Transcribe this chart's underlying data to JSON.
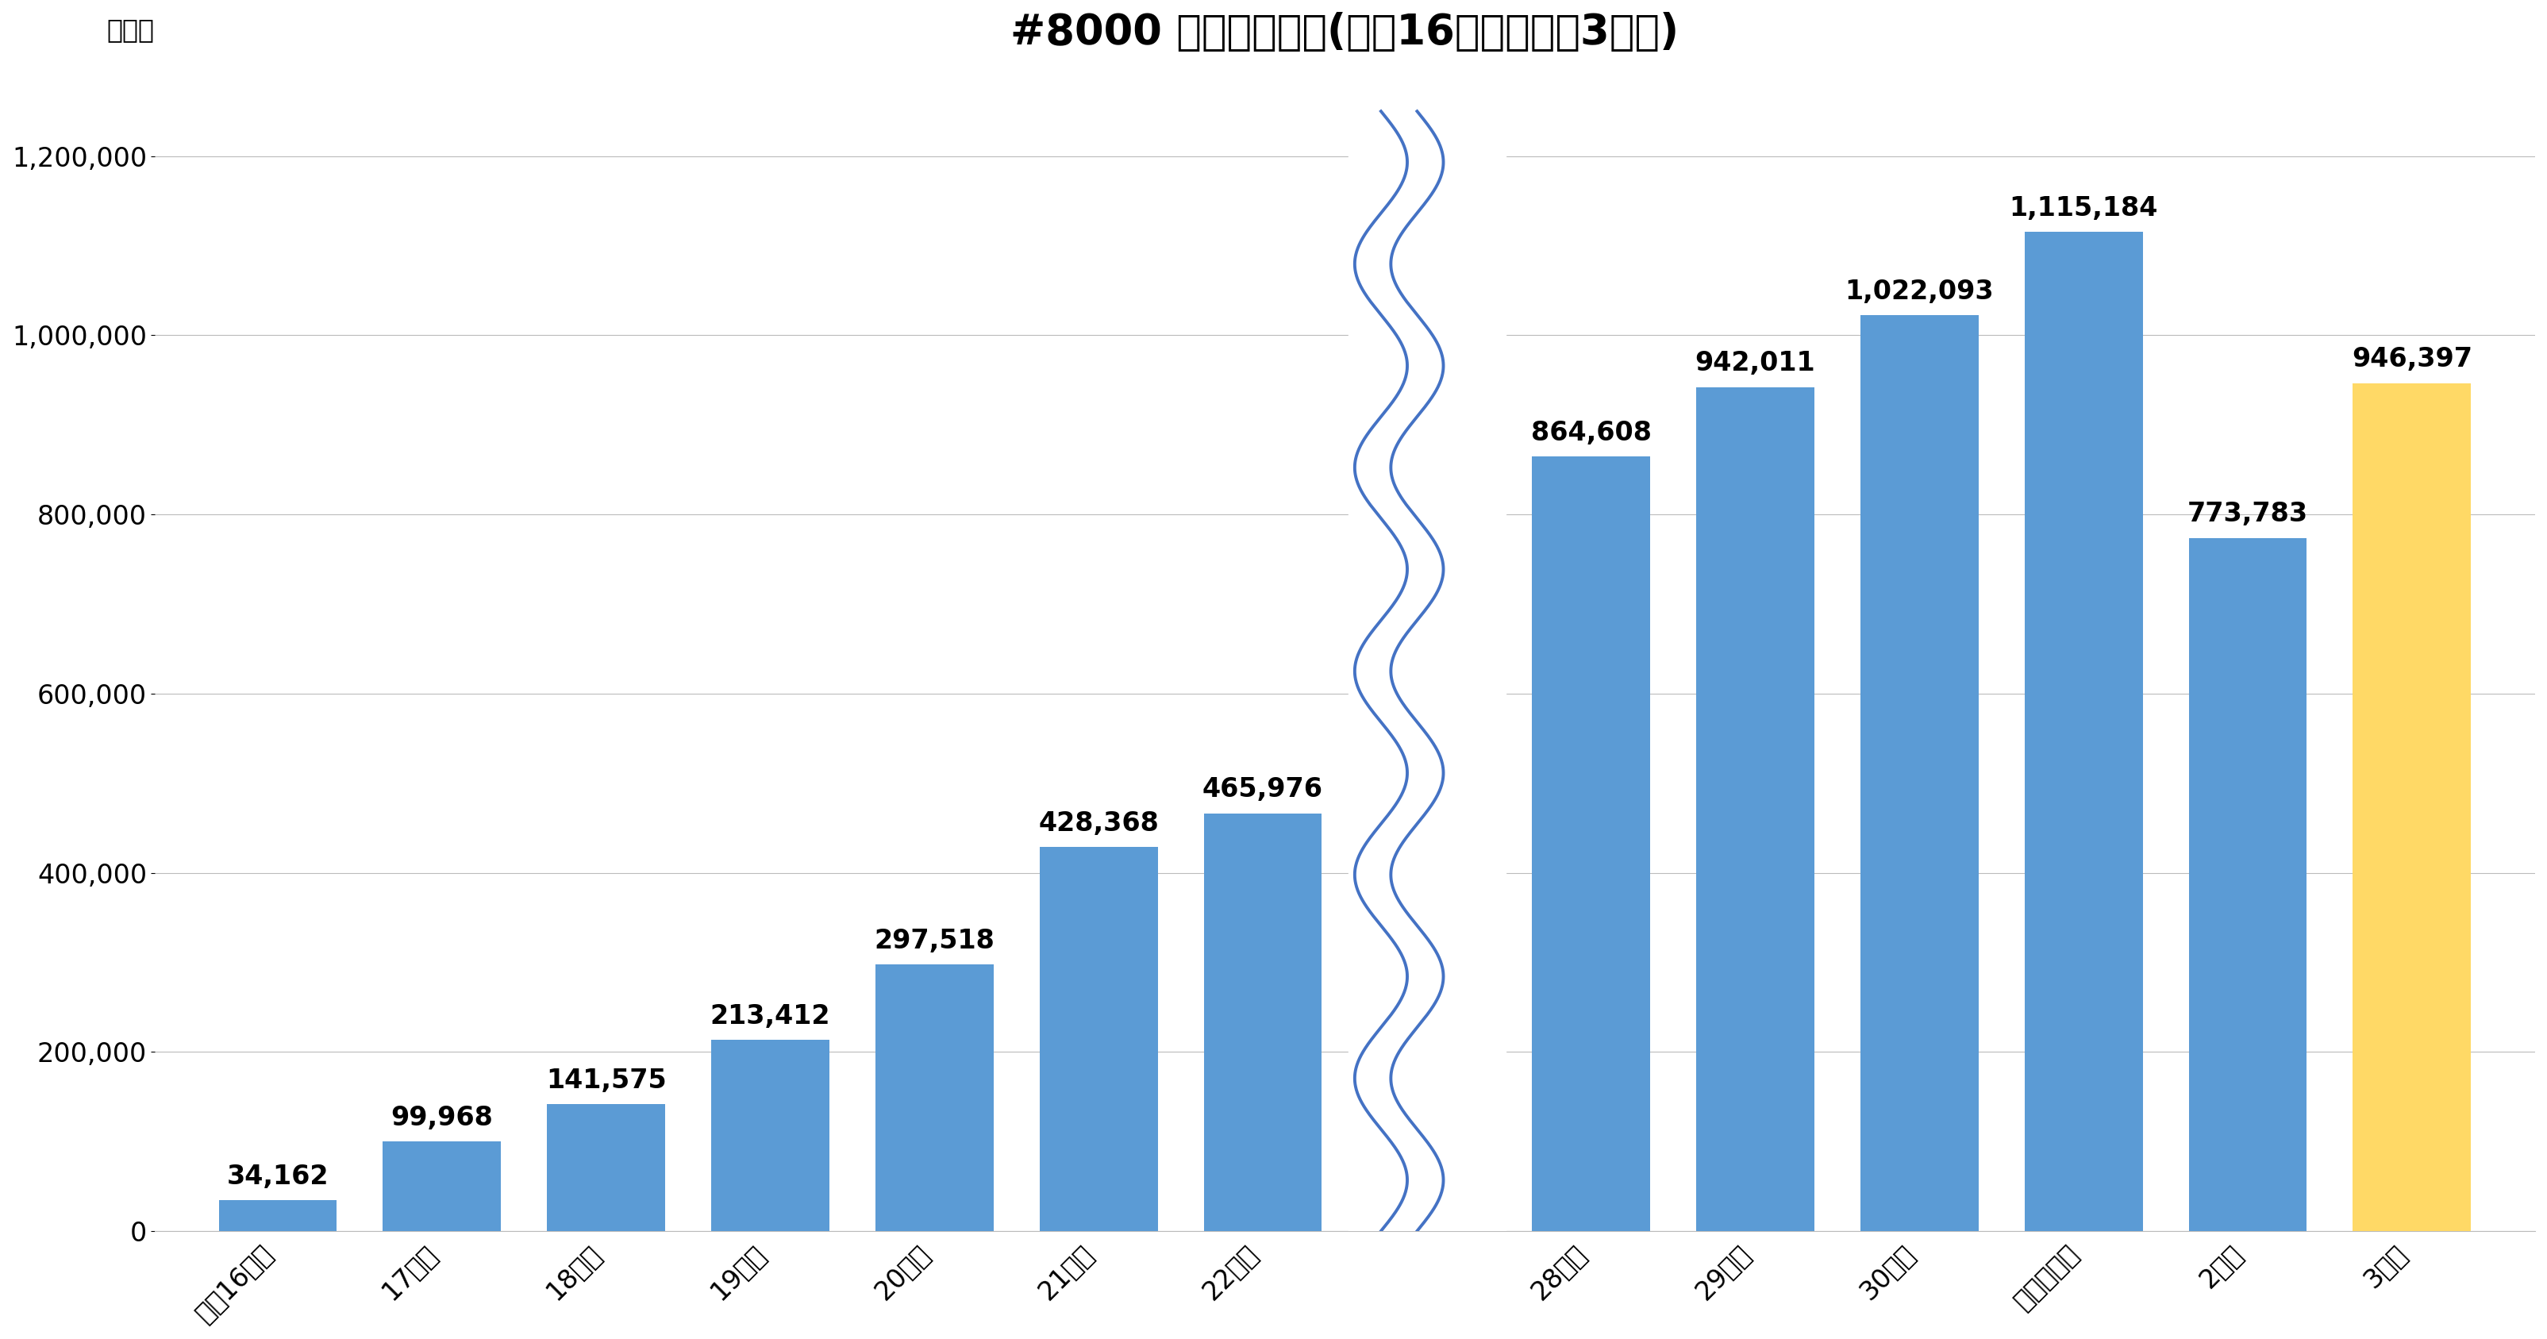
{
  "title": "#8000 全国相談件数(平成16年度～令和3年度)",
  "ylabel": "（件）",
  "categories": [
    "平成16年度",
    "17年度",
    "18年度",
    "19年度",
    "20年度",
    "21年度",
    "22年度",
    "28年度",
    "29年度",
    "30年度",
    "令和元年度",
    "2年度",
    "3年度"
  ],
  "values": [
    34162,
    99968,
    141575,
    213412,
    297518,
    428368,
    465976,
    864608,
    942011,
    1022093,
    1115184,
    773783,
    946397
  ],
  "bar_colors": [
    "#5B9BD5",
    "#5B9BD5",
    "#5B9BD5",
    "#5B9BD5",
    "#5B9BD5",
    "#5B9BD5",
    "#5B9BD5",
    "#5B9BD5",
    "#5B9BD5",
    "#5B9BD5",
    "#5B9BD5",
    "#5B9BD5",
    "#FFD966"
  ],
  "ylim": [
    0,
    1300000
  ],
  "yticks": [
    0,
    200000,
    400000,
    600000,
    800000,
    1000000,
    1200000
  ],
  "background_color": "#FFFFFF",
  "grid_color": "#BBBBBB",
  "title_fontsize": 38,
  "label_fontsize": 24,
  "tick_fontsize": 24,
  "bar_label_fontsize": 24,
  "wave_color": "#4472C4",
  "wave_amplitude": 0.16,
  "wave_freq": 5.5
}
